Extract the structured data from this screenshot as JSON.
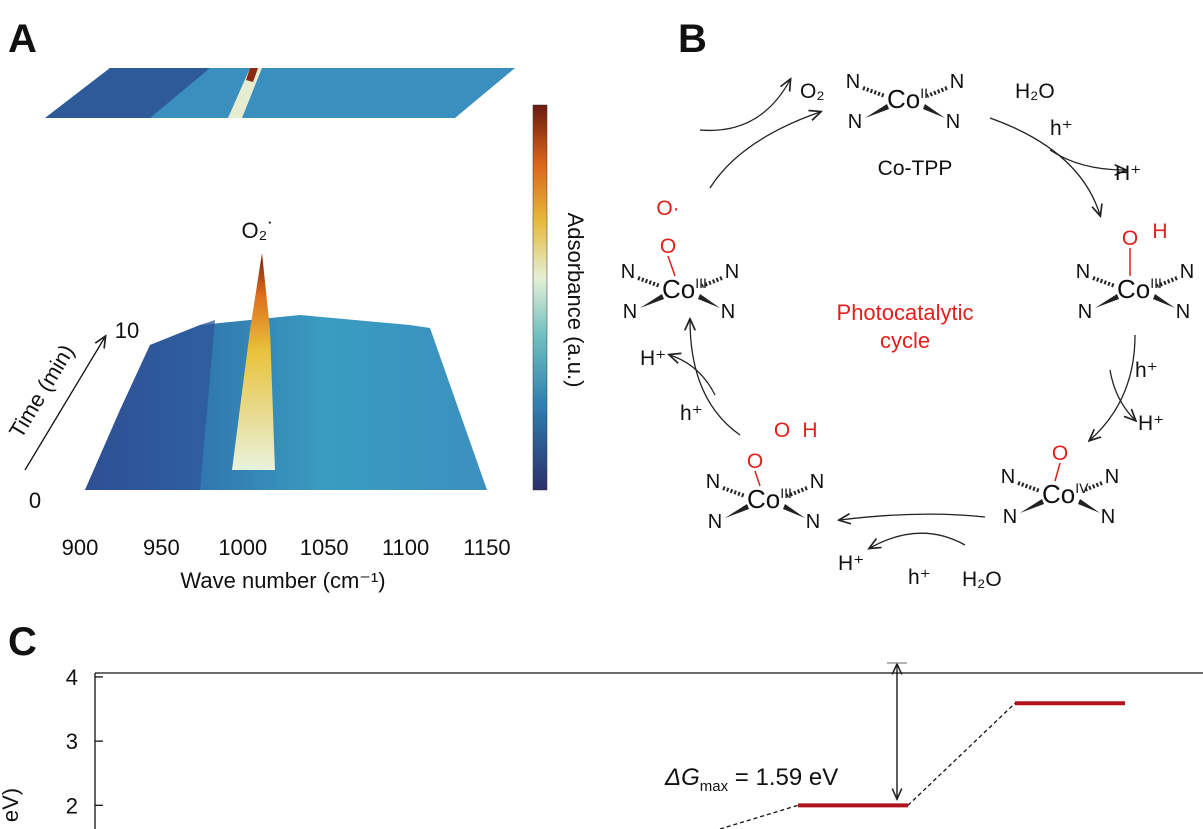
{
  "panel_a": {
    "letter": "A",
    "peak_label": "O₂˙",
    "colorbar_label": "Adsorbance (a.u.)",
    "time_label": "Time (min)",
    "time_ticks": [
      0,
      10
    ],
    "xlabel": "Wave number (cm⁻¹)",
    "xlim": [
      900,
      1150
    ],
    "xticks": [
      900,
      950,
      1000,
      1050,
      1100,
      1150
    ]
  },
  "panel_b": {
    "letter": "B",
    "center_label": [
      "Photocatalytic",
      "cycle"
    ],
    "ligand": "N",
    "metal": "Co",
    "catalyst_name": "Co-TPP",
    "complexes": [
      {
        "ox": "II",
        "axial": []
      },
      {
        "ox": "III",
        "axial": [
          "O",
          "H"
        ]
      },
      {
        "ox": "IV",
        "axial": [
          "O"
        ]
      },
      {
        "ox": "III",
        "axial": [
          "O",
          "O",
          "H"
        ]
      },
      {
        "ox": "III",
        "axial": [
          "O",
          "O·"
        ]
      }
    ],
    "reagents": [
      "O₂",
      "H₂O",
      "h⁺",
      "H⁺",
      "h⁺",
      "H⁺",
      "H₂O",
      "h⁺",
      "H⁺",
      "h⁺",
      "H⁺"
    ]
  },
  "panel_c": {
    "letter": "C",
    "ylabel": "eV)",
    "ylim": [
      1.6,
      4.03
    ],
    "yticks": [
      2,
      3,
      4
    ],
    "levels": [
      2.0,
      3.59
    ],
    "annotation": {
      "symbol": "ΔG",
      "sub": "max",
      "text": " = 1.59 eV"
    }
  }
}
